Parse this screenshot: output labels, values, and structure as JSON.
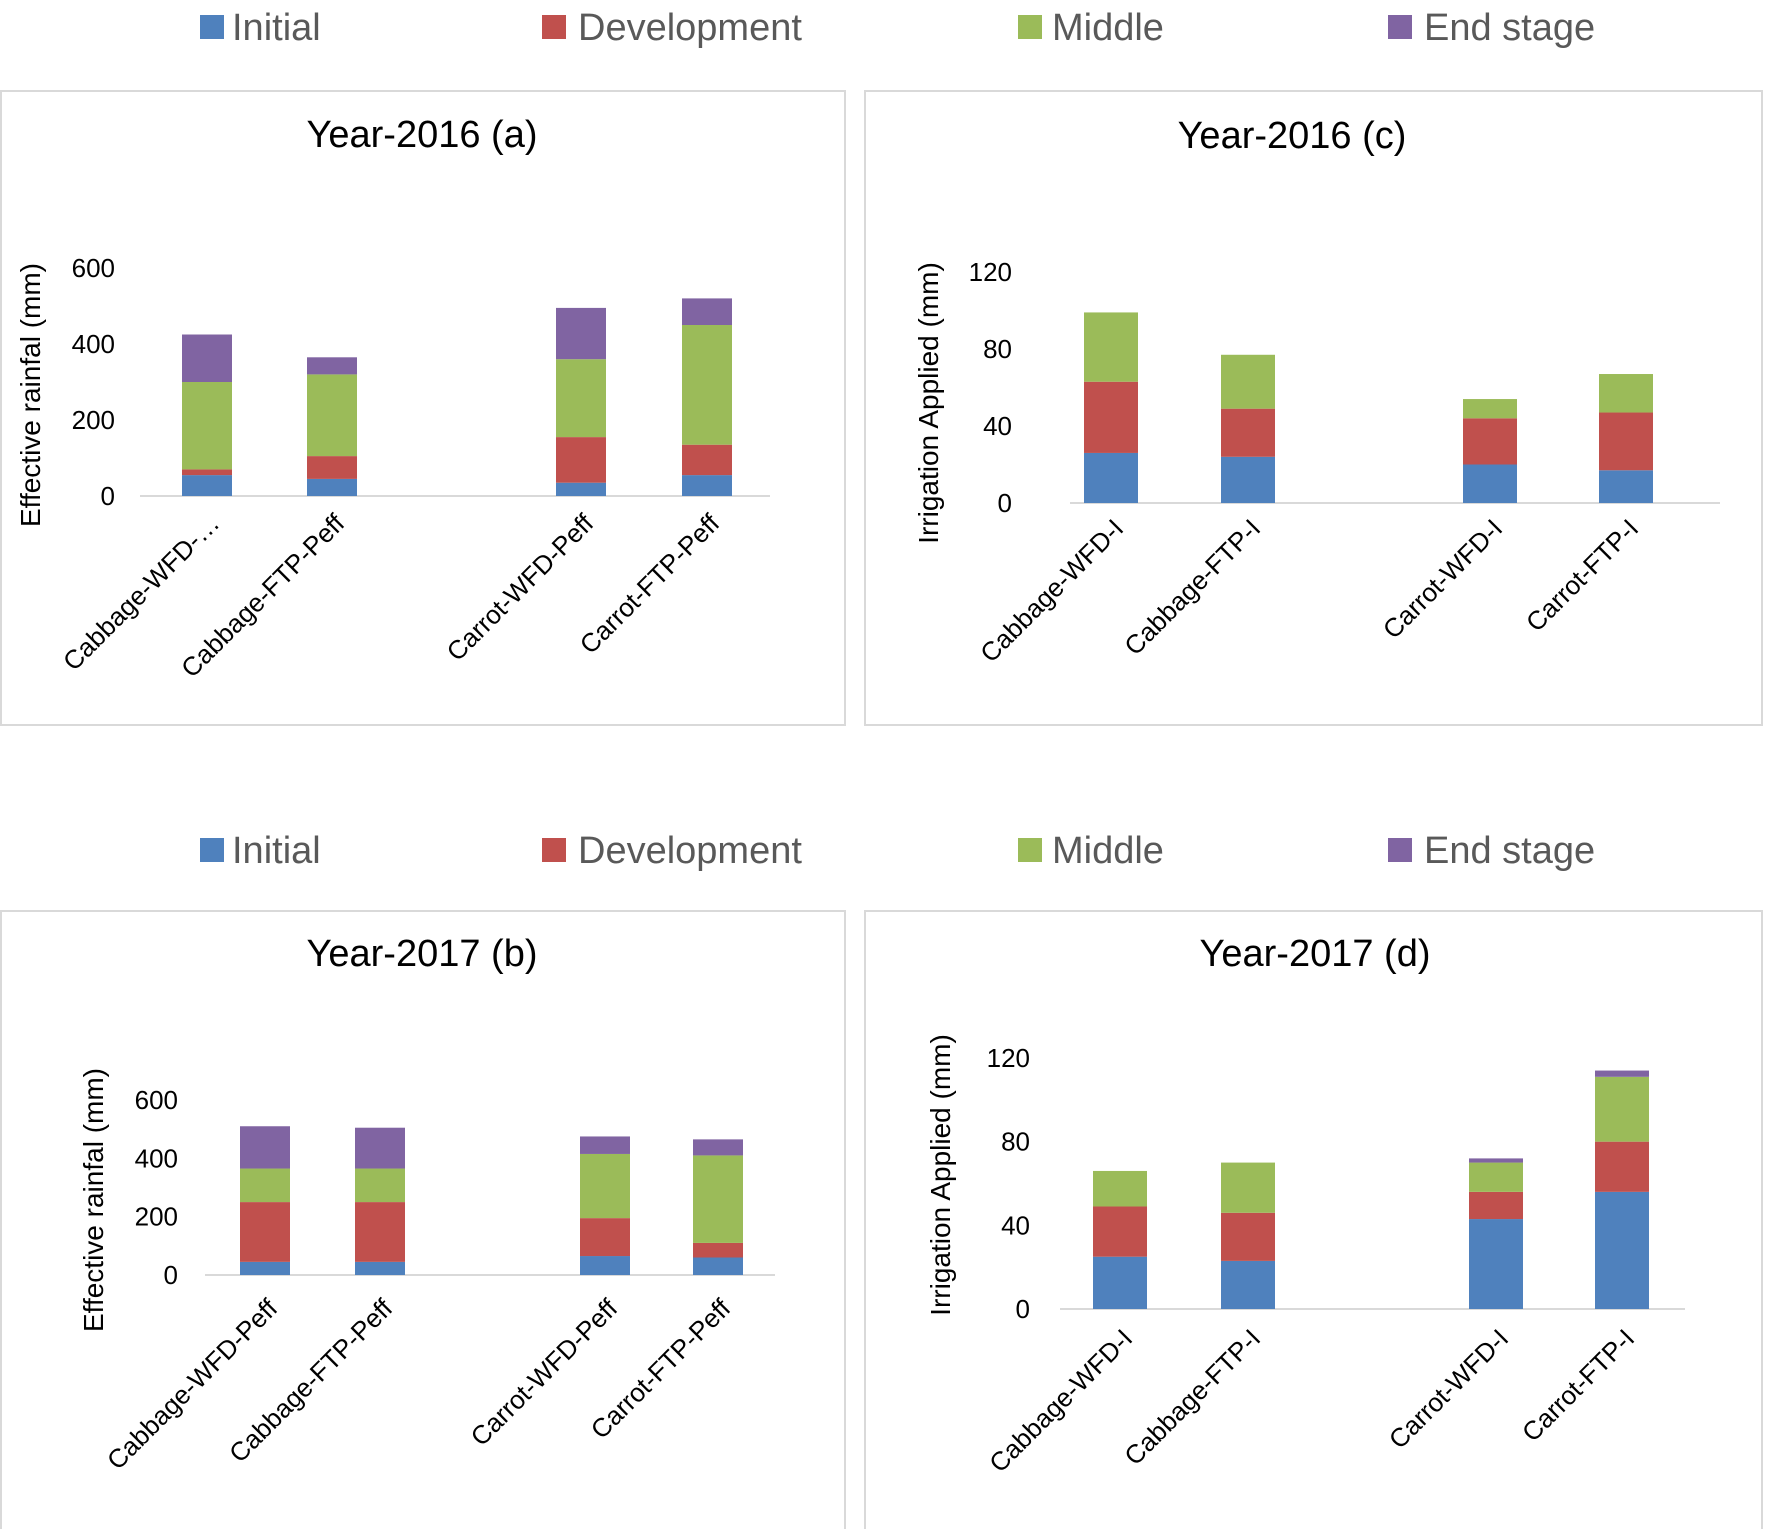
{
  "legend": [
    {
      "label": "Initial",
      "color": "#4F81BD"
    },
    {
      "label": "Development",
      "color": "#C0504D"
    },
    {
      "label": "Middle",
      "color": "#9BBB59"
    },
    {
      "label": "End stage",
      "color": "#8064A2"
    }
  ],
  "chart_data": [
    {
      "type": "bar",
      "stacked": true,
      "title": "Year-2016 (a)",
      "ylabel": "Effective rainfal (mm)",
      "xlabel": "",
      "ylim": [
        0,
        600
      ],
      "yticks": [
        0,
        200,
        400,
        600
      ],
      "categories": [
        "Cabbage-WFD-…",
        "Cabbage-FTP-Peff",
        "",
        "Carrot-WFD-Peff",
        "Carrot-FTP-Peff"
      ],
      "series": [
        {
          "name": "Initial",
          "values": [
            55,
            45,
            null,
            35,
            55
          ]
        },
        {
          "name": "Development",
          "values": [
            15,
            60,
            null,
            120,
            80
          ]
        },
        {
          "name": "Middle",
          "values": [
            230,
            215,
            null,
            205,
            315
          ]
        },
        {
          "name": "End stage",
          "values": [
            125,
            45,
            null,
            135,
            70
          ]
        }
      ]
    },
    {
      "type": "bar",
      "stacked": true,
      "title": "Year-2017 (b)",
      "ylabel": "Effective rainfal (mm)",
      "xlabel": "",
      "ylim": [
        0,
        600
      ],
      "yticks": [
        0,
        200,
        400,
        600
      ],
      "categories": [
        "Cabbage-WFD-Peff",
        "Cabbage-FTP-Peff",
        "",
        "Carrot-WFD-Peff",
        "Carrot-FTP-Peff"
      ],
      "series": [
        {
          "name": "Initial",
          "values": [
            45,
            45,
            null,
            65,
            60
          ]
        },
        {
          "name": "Development",
          "values": [
            205,
            205,
            null,
            130,
            50
          ]
        },
        {
          "name": "Middle",
          "values": [
            115,
            115,
            null,
            220,
            300
          ]
        },
        {
          "name": "End stage",
          "values": [
            145,
            140,
            null,
            60,
            55
          ]
        }
      ]
    },
    {
      "type": "bar",
      "stacked": true,
      "title": "Year-2016 (c)",
      "ylabel": "Irrigation  Applied (mm)",
      "xlabel": "",
      "ylim": [
        0,
        120
      ],
      "yticks": [
        0,
        40,
        80,
        120
      ],
      "categories": [
        "Cabbage-WFD-I",
        "Cabbage-FTP-I",
        "",
        "Carrot-WFD-I",
        "Carrot-FTP-I"
      ],
      "series": [
        {
          "name": "Initial",
          "values": [
            26,
            24,
            null,
            20,
            17
          ]
        },
        {
          "name": "Development",
          "values": [
            37,
            25,
            null,
            24,
            30
          ]
        },
        {
          "name": "Middle",
          "values": [
            36,
            28,
            null,
            10,
            20
          ]
        },
        {
          "name": "End stage",
          "values": [
            0,
            0,
            null,
            0,
            0
          ]
        }
      ]
    },
    {
      "type": "bar",
      "stacked": true,
      "title": "Year-2017 (d)",
      "ylabel": "Irrigation  Applied (mm)",
      "xlabel": "",
      "ylim": [
        0,
        120
      ],
      "yticks": [
        0,
        40,
        80,
        120
      ],
      "categories": [
        "Cabbage-WFD-I",
        "Cabbage-FTP-I",
        "",
        "Carrot-WFD-I",
        "Carrot-FTP-I"
      ],
      "series": [
        {
          "name": "Initial",
          "values": [
            25,
            23,
            null,
            43,
            56
          ]
        },
        {
          "name": "Development",
          "values": [
            24,
            23,
            null,
            13,
            24
          ]
        },
        {
          "name": "Middle",
          "values": [
            17,
            24,
            null,
            14,
            31
          ]
        },
        {
          "name": "End stage",
          "values": [
            0,
            0,
            null,
            2,
            3
          ]
        }
      ]
    }
  ]
}
